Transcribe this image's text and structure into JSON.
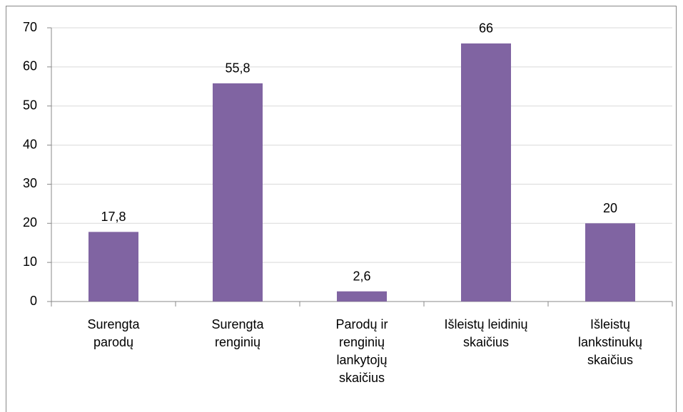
{
  "chart_data": {
    "type": "bar",
    "categories": [
      "Surengta\nparodų",
      "Surengta\nrenginių",
      "Parodų ir\nrenginių\nlankytojų\nskaičius",
      "Išleistų leidinių\nskaičius",
      "Išleistų\nlankstinukų\nskaičius"
    ],
    "values": [
      17.8,
      55.8,
      2.6,
      66,
      20
    ],
    "value_labels": [
      "17,8",
      "55,8",
      "2,6",
      "66",
      "20"
    ],
    "color": "#8064a2",
    "ylim": [
      0,
      70
    ],
    "yticks": [
      0,
      10,
      20,
      30,
      40,
      50,
      60,
      70
    ],
    "grid": true
  }
}
